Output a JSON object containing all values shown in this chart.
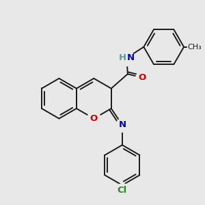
{
  "bg": "#e8e8e8",
  "bc": "#1a1a1a",
  "bw": 1.4,
  "N_color": "#0000cc",
  "O_color": "#cc0000",
  "Cl_color": "#228B22",
  "H_color": "#5a9a9a",
  "fs": 9.5,
  "xlim": [
    0,
    10
  ],
  "ylim": [
    0,
    10
  ]
}
